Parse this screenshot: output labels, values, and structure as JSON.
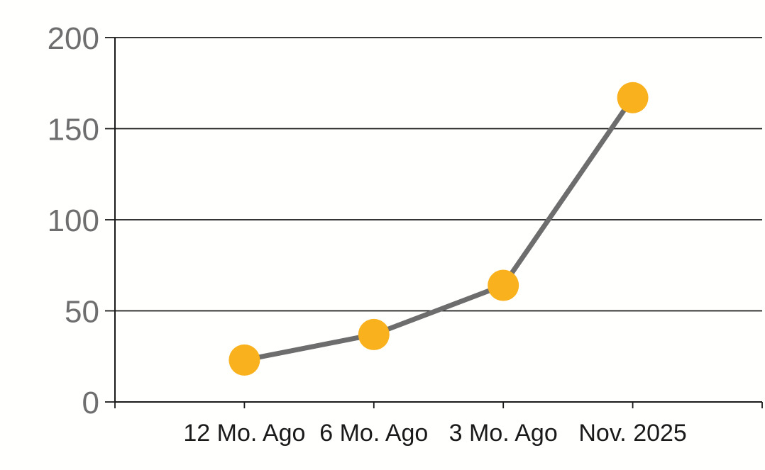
{
  "chart_data": {
    "type": "line",
    "title": "",
    "xlabel": "",
    "ylabel": "",
    "categories": [
      "12 Mo. Ago",
      "6 Mo. Ago",
      "3 Mo. Ago",
      "Nov. 2025"
    ],
    "series": [
      {
        "name": "values",
        "values": [
          23,
          37,
          64,
          167
        ]
      }
    ],
    "ylim": [
      0,
      200
    ],
    "yticks": [
      0,
      50,
      100,
      150,
      200
    ],
    "grid": "horizontal",
    "legend": "none",
    "colors": {
      "marker": "#f9b11e",
      "line": "#6d6d6d",
      "gridline": "#1a1a1a",
      "axis": "#1a1a1a",
      "y_label_text": "#6e6e6e",
      "x_label_text": "#1a1a1a",
      "background": "#fffffe"
    }
  }
}
